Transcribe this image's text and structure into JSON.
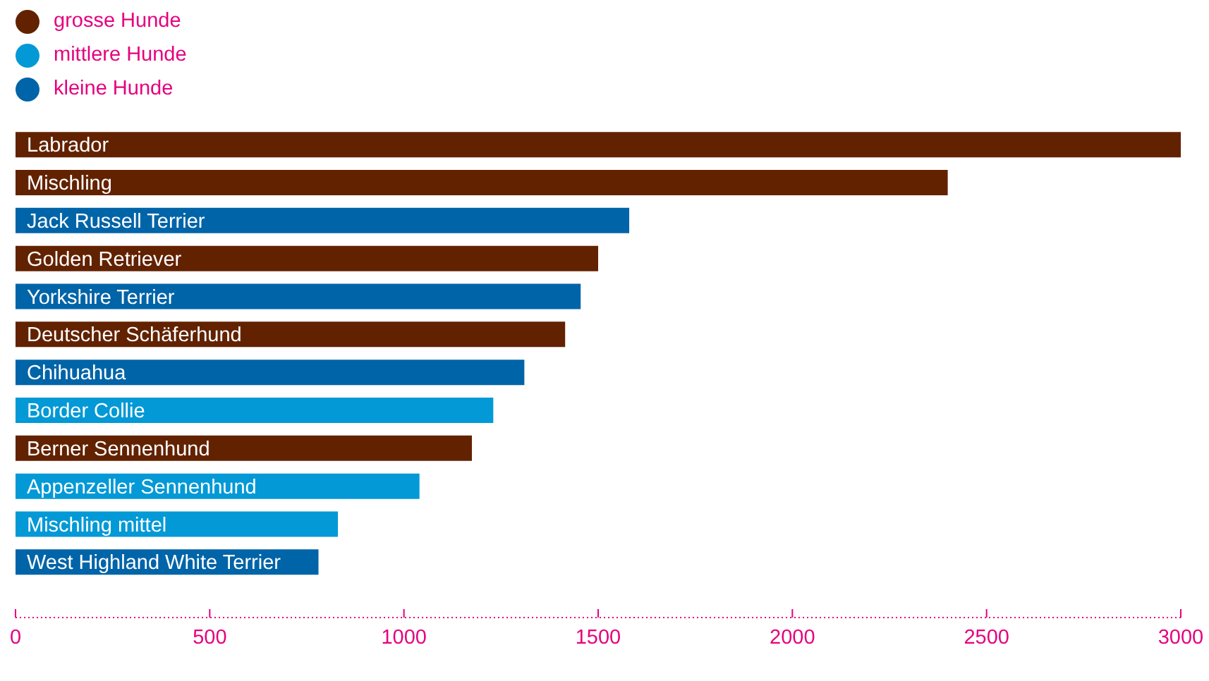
{
  "chart_data": {
    "type": "bar",
    "orientation": "horizontal",
    "categories": [
      "Labrador",
      "Mischling",
      "Jack Russell Terrier",
      "Golden Retriever",
      "Yorkshire Terrier",
      "Deutscher Schäferhund",
      "Chihuahua",
      "Border Collie",
      "Berner Sennenhund",
      "Appenzeller Sennenhund",
      "Mischling mittel",
      "West Highland White Terrier"
    ],
    "series": [
      {
        "name": "grosse Hunde",
        "color": "#622200",
        "values": [
          3000,
          2400,
          null,
          1500,
          null,
          1415,
          null,
          null,
          1175,
          null,
          null,
          null
        ]
      },
      {
        "name": "mittlere Hunde",
        "color": "#0299d6",
        "values": [
          null,
          null,
          null,
          null,
          null,
          null,
          null,
          1230,
          null,
          1040,
          830,
          null
        ]
      },
      {
        "name": "kleine Hunde",
        "color": "#0064a8",
        "values": [
          null,
          null,
          1580,
          null,
          1455,
          null,
          1310,
          null,
          null,
          null,
          null,
          780
        ]
      }
    ],
    "xlim": [
      0,
      3000
    ],
    "xticks": [
      0,
      500,
      1000,
      1500,
      2000,
      2500,
      3000
    ],
    "tick_labels": "x",
    "grid": false,
    "legend": "top left"
  }
}
